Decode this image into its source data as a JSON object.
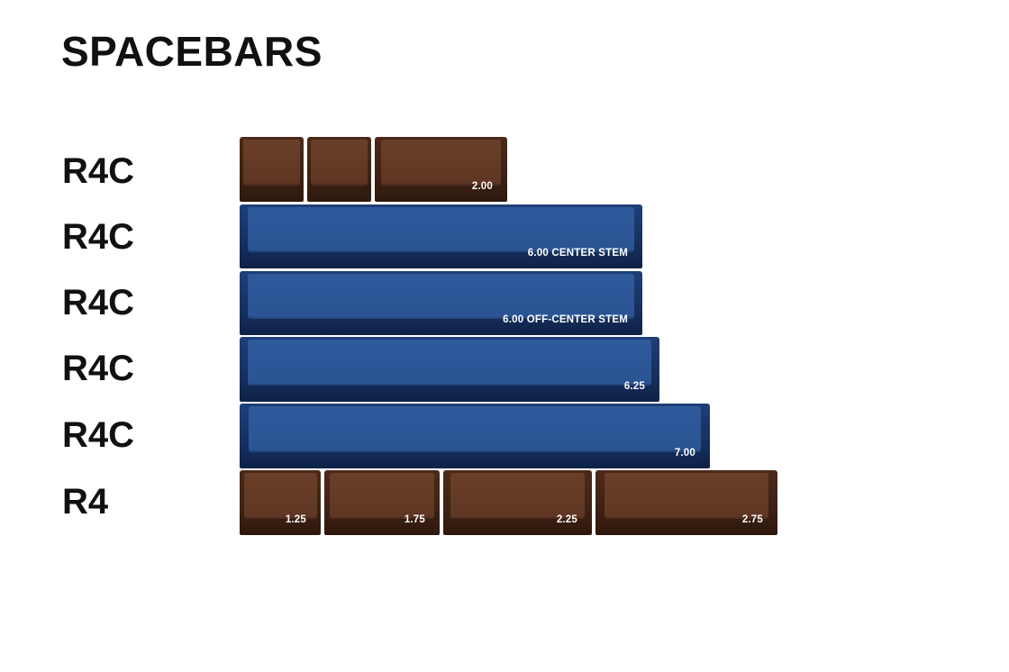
{
  "title": "SPACEBARS",
  "rows": [
    {
      "label": "R4C",
      "keys": [
        {
          "label": "",
          "color": "brown"
        },
        {
          "label": "",
          "color": "brown"
        },
        {
          "label": "2.00",
          "color": "brown"
        }
      ]
    },
    {
      "label": "R4C",
      "keys": [
        {
          "label": "6.00 CENTER STEM",
          "color": "blue"
        }
      ]
    },
    {
      "label": "R4C",
      "keys": [
        {
          "label": "6.00 OFF-CENTER STEM",
          "color": "blue"
        }
      ]
    },
    {
      "label": "R4C",
      "keys": [
        {
          "label": "6.25",
          "color": "blue"
        }
      ]
    },
    {
      "label": "R4C",
      "keys": [
        {
          "label": "7.00",
          "color": "blue"
        }
      ]
    },
    {
      "label": "R4",
      "keys": [
        {
          "label": "1.25",
          "color": "brown"
        },
        {
          "label": "1.75",
          "color": "brown"
        },
        {
          "label": "2.25",
          "color": "brown"
        },
        {
          "label": "2.75",
          "color": "brown"
        }
      ]
    }
  ],
  "colors": {
    "brown": "#5e3623",
    "blue": "#2a5392"
  }
}
